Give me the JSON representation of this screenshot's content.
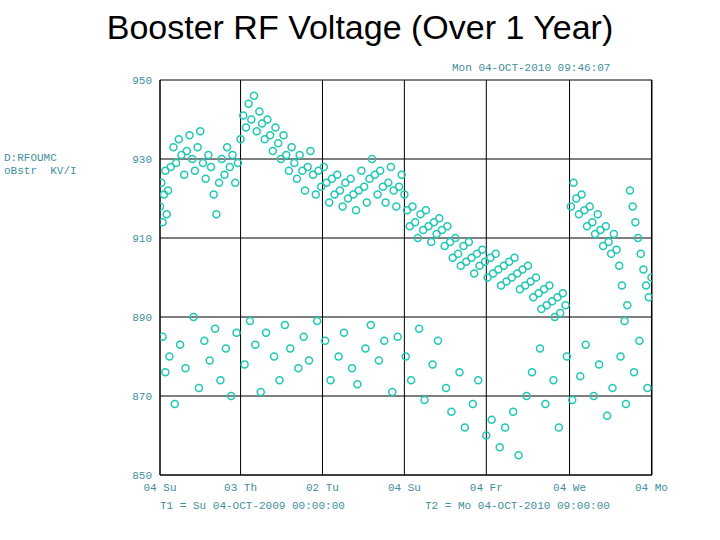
{
  "chart_data": {
    "type": "scatter",
    "title": "Booster RF Voltage (Over 1 Year)",
    "ylabel": [
      "D:RFOUMC",
      "oBstr  KV/I"
    ],
    "annotations": [
      "Mon 04-OCT-2010 09:46:07",
      "T1 = Su 04-OCT-2009 00:00:00",
      "T2 = Mo 04-OCT-2010 09:00:00"
    ],
    "x": [
      0,
      1,
      2,
      3,
      4,
      5,
      6,
      8,
      10,
      12,
      14,
      16,
      18,
      20,
      22,
      24,
      26,
      28,
      30,
      32,
      34,
      36,
      38,
      40,
      42,
      44,
      46,
      48,
      50,
      52,
      54,
      56,
      58,
      60,
      62,
      64,
      66,
      68,
      70,
      72,
      74,
      76,
      78,
      80,
      82,
      84,
      86,
      88,
      90,
      92,
      94,
      96,
      98,
      100,
      102,
      104,
      106,
      108,
      110,
      112,
      114,
      116,
      118,
      120,
      122,
      124,
      126,
      128,
      130,
      132,
      134,
      136,
      138,
      140,
      142,
      144,
      146,
      148,
      150,
      152,
      154,
      156,
      158,
      160,
      162,
      164,
      166,
      168,
      170,
      172,
      174,
      176,
      178,
      180,
      182,
      184,
      186,
      188,
      190,
      192,
      194,
      196,
      198,
      200,
      202,
      204,
      206,
      208,
      210,
      212,
      214,
      216,
      218,
      220,
      222,
      224,
      226,
      228,
      230,
      232,
      234,
      236,
      238,
      240,
      242,
      244,
      246,
      248,
      250,
      252,
      254,
      256,
      258,
      260,
      262,
      264,
      266,
      268,
      270,
      272,
      274,
      276,
      278,
      280,
      282,
      284,
      286,
      288,
      290,
      292,
      294,
      296,
      298,
      300,
      302,
      306,
      308,
      310,
      312,
      314,
      316,
      318,
      320,
      322,
      324,
      326,
      328,
      330,
      332,
      334,
      336,
      338,
      340,
      342,
      344,
      346,
      348,
      350,
      352,
      354,
      356,
      358,
      360,
      362,
      364,
      366,
      2,
      4,
      7,
      11,
      15,
      19,
      25,
      29,
      33,
      37,
      41,
      45,
      49,
      53,
      57,
      63,
      67,
      71,
      75,
      79,
      85,
      89,
      93,
      97,
      103,
      107,
      111,
      117,
      123,
      127,
      133,
      137,
      143,
      147,
      153,
      157,
      163,
      167,
      173,
      177,
      183,
      187,
      193,
      197,
      203,
      207,
      213,
      217,
      223,
      227,
      233,
      237,
      243,
      247,
      253,
      257,
      263,
      267,
      273,
      277,
      283,
      287,
      293,
      297,
      303,
      307,
      313,
      317,
      323,
      327,
      333,
      337,
      343,
      347,
      353,
      357,
      363
    ],
    "values": [
      918,
      924,
      914,
      921,
      927,
      916,
      922,
      928,
      933,
      929,
      935,
      931,
      926,
      932,
      936,
      930,
      927,
      933,
      937,
      929,
      925,
      931,
      928,
      921,
      916,
      924,
      930,
      926,
      933,
      928,
      931,
      924,
      929,
      935,
      941,
      938,
      944,
      940,
      946,
      937,
      942,
      939,
      935,
      940,
      936,
      932,
      938,
      934,
      930,
      936,
      931,
      927,
      933,
      929,
      925,
      931,
      927,
      922,
      928,
      932,
      926,
      921,
      927,
      923,
      928,
      924,
      919,
      925,
      921,
      926,
      922,
      918,
      924,
      920,
      925,
      921,
      917,
      922,
      927,
      923,
      919,
      925,
      930,
      926,
      921,
      927,
      923,
      919,
      924,
      928,
      922,
      918,
      923,
      926,
      921,
      917,
      913,
      918,
      914,
      910,
      916,
      912,
      917,
      913,
      909,
      914,
      911,
      915,
      912,
      908,
      913,
      909,
      905,
      910,
      906,
      903,
      908,
      904,
      909,
      905,
      901,
      906,
      903,
      907,
      904,
      900,
      905,
      901,
      906,
      902,
      898,
      903,
      899,
      904,
      900,
      905,
      901,
      897,
      902,
      898,
      903,
      899,
      895,
      900,
      896,
      892,
      897,
      893,
      898,
      894,
      890,
      895,
      891,
      896,
      893,
      918,
      924,
      920,
      916,
      921,
      917,
      913,
      918,
      914,
      911,
      916,
      912,
      908,
      913,
      909,
      906,
      911,
      907,
      903,
      898,
      889,
      893,
      922,
      918,
      914,
      910,
      906,
      902,
      898,
      895,
      900,
      885,
      876,
      880,
      868,
      883,
      877,
      890,
      872,
      884,
      879,
      887,
      874,
      882,
      870,
      886,
      878,
      889,
      883,
      871,
      886,
      880,
      874,
      888,
      882,
      877,
      885,
      879,
      889,
      884,
      874,
      880,
      886,
      877,
      873,
      882,
      888,
      879,
      884,
      871,
      885,
      880,
      874,
      887,
      869,
      878,
      884,
      872,
      866,
      876,
      862,
      868,
      874,
      860,
      864,
      857,
      862,
      866,
      855,
      870,
      876,
      882,
      868,
      874,
      862,
      880,
      869,
      875,
      883,
      870,
      878,
      865,
      872,
      880,
      868,
      876,
      884,
      872
    ],
    "color": "#1fc8b4",
    "marker": "open_circle",
    "grid": true,
    "xlim": [
      0,
      366.4
    ],
    "xticks": [
      {
        "value": 0,
        "label": "04 Su"
      },
      {
        "value": 60,
        "label": "03 Th"
      },
      {
        "value": 121,
        "label": "02 Tu"
      },
      {
        "value": 182,
        "label": "04 Su"
      },
      {
        "value": 243,
        "label": "04 Fr"
      },
      {
        "value": 305,
        "label": "04 We"
      },
      {
        "value": 366,
        "label": "04 Mo"
      }
    ],
    "ylim": [
      850,
      950
    ],
    "yticks": [
      850,
      870,
      890,
      910,
      930,
      950
    ]
  }
}
